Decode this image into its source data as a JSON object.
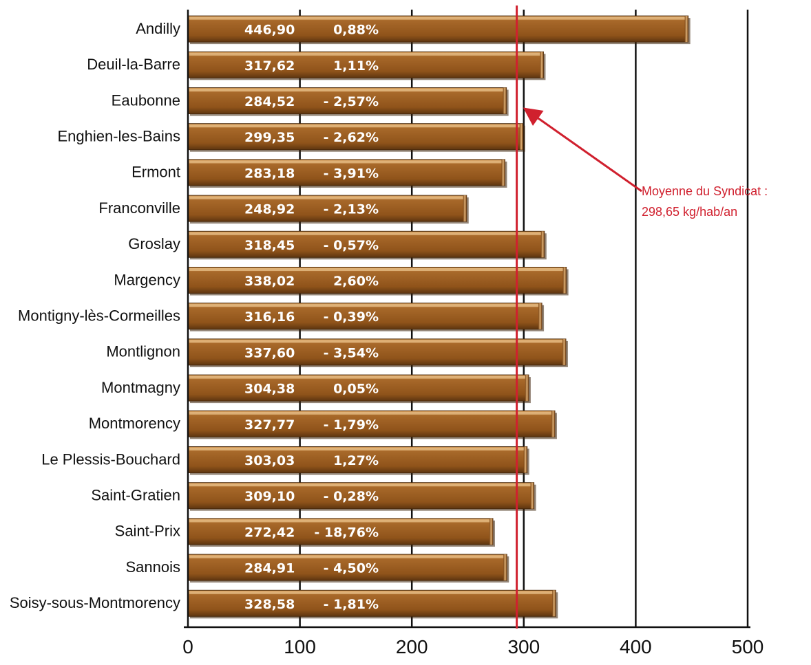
{
  "chart_data": {
    "type": "bar",
    "orientation": "horizontal",
    "categories": [
      "Andilly",
      "Deuil-la-Barre",
      "Eaubonne",
      "Enghien-les-Bains",
      "Ermont",
      "Franconville",
      "Groslay",
      "Margency",
      "Montigny-lès-Cormeilles",
      "Montlignon",
      "Montmagny",
      "Montmorency",
      "Le Plessis-Bouchard",
      "Saint-Gratien",
      "Saint-Prix",
      "Sannois",
      "Soisy-sous-Montmorency"
    ],
    "values": [
      446.9,
      317.62,
      284.52,
      299.35,
      283.18,
      248.92,
      318.45,
      338.02,
      316.16,
      337.6,
      304.38,
      327.77,
      303.03,
      309.1,
      272.42,
      284.91,
      328.58
    ],
    "value_labels": [
      "446,90",
      "317,62",
      "284,52",
      "299,35",
      "283,18",
      "248,92",
      "318,45",
      "338,02",
      "316,16",
      "337,60",
      "304,38",
      "327,77",
      "303,03",
      "309,10",
      "272,42",
      "284,91",
      "328,58"
    ],
    "change_labels": [
      "0,88%",
      "1,11%",
      "- 2,57%",
      "- 2,62%",
      "- 3,91%",
      "- 2,13%",
      "- 0,57%",
      "2,60%",
      "- 0,39%",
      "- 3,54%",
      "0,05%",
      "- 1,79%",
      "1,27%",
      "- 0,28%",
      "- 18,76%",
      "- 4,50%",
      "- 1,81%"
    ],
    "xlim": [
      0,
      500
    ],
    "xticks": [
      0,
      100,
      200,
      300,
      400,
      500
    ],
    "xtick_labels": [
      "0",
      "100",
      "200",
      "300",
      "400",
      "500"
    ],
    "grid": "vertical",
    "reference_line": {
      "value": 298.65,
      "label_line1": "Moyenne du Syndicat :",
      "label_line2": "298,65 kg/hab/an",
      "color": "#d0202e"
    },
    "colors": {
      "bar": "#9b5c1e",
      "bar_light": "#c4853c",
      "bar_dark": "#5e3510",
      "reference": "#d0202e"
    }
  }
}
